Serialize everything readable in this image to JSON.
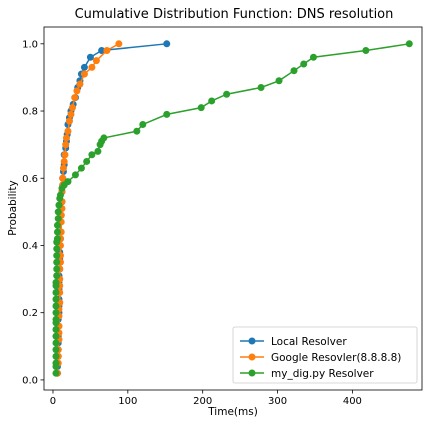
{
  "chart_data": {
    "type": "line",
    "title": "Cumulative Distribution Function: DNS resolution",
    "xlabel": "Time(ms)",
    "ylabel": "Probability",
    "xlim": [
      -12,
      493
    ],
    "ylim": [
      -0.03,
      1.05
    ],
    "xticks": [
      0,
      100,
      200,
      300,
      400
    ],
    "yticks": [
      0.0,
      0.2,
      0.4,
      0.6,
      0.8,
      1.0
    ],
    "grid": false,
    "legend_position": "lower-right",
    "series": [
      {
        "name": "Local Resolver",
        "color": "#1f77b4",
        "x": [
          6,
          6,
          7,
          7,
          7,
          7,
          7,
          7,
          8,
          8,
          8,
          8,
          8,
          8,
          9,
          9,
          9,
          9,
          10,
          10,
          10,
          11,
          11,
          12,
          12,
          13,
          13,
          14,
          15,
          15,
          17,
          18,
          19,
          20,
          22,
          24,
          27,
          30,
          33,
          36,
          38,
          42,
          50,
          65,
          152
        ],
        "y": [
          0.02,
          0.04,
          0.07,
          0.09,
          0.11,
          0.13,
          0.16,
          0.18,
          0.2,
          0.22,
          0.24,
          0.27,
          0.29,
          0.31,
          0.33,
          0.36,
          0.38,
          0.4,
          0.42,
          0.44,
          0.47,
          0.49,
          0.51,
          0.53,
          0.56,
          0.58,
          0.6,
          0.62,
          0.64,
          0.67,
          0.69,
          0.71,
          0.73,
          0.76,
          0.78,
          0.8,
          0.82,
          0.84,
          0.87,
          0.89,
          0.91,
          0.93,
          0.96,
          0.98,
          1.0
        ]
      },
      {
        "name": "Google Resovler(8.8.8.8)",
        "color": "#ff7f0e",
        "x": [
          6,
          7,
          7,
          7,
          8,
          8,
          8,
          8,
          8,
          9,
          9,
          9,
          9,
          9,
          10,
          10,
          10,
          10,
          11,
          11,
          11,
          12,
          12,
          12,
          13,
          13,
          14,
          15,
          16,
          17,
          18,
          20,
          22,
          24,
          26,
          29,
          32,
          36,
          42,
          52,
          58,
          72,
          88
        ],
        "y": [
          0.02,
          0.05,
          0.07,
          0.09,
          0.12,
          0.14,
          0.16,
          0.19,
          0.21,
          0.23,
          0.26,
          0.28,
          0.3,
          0.33,
          0.35,
          0.37,
          0.4,
          0.42,
          0.44,
          0.47,
          0.49,
          0.51,
          0.53,
          0.56,
          0.58,
          0.6,
          0.63,
          0.65,
          0.67,
          0.7,
          0.72,
          0.74,
          0.77,
          0.79,
          0.81,
          0.84,
          0.86,
          0.88,
          0.91,
          0.93,
          0.95,
          0.98,
          1.0
        ]
      },
      {
        "name": "my_dig.py Resolver",
        "color": "#2ca02c",
        "x": [
          4,
          4,
          4,
          4,
          4,
          4,
          4,
          4,
          4,
          4,
          4,
          4,
          4,
          4,
          4,
          4,
          5,
          5,
          5,
          5,
          5,
          5,
          6,
          6,
          6,
          7,
          7,
          8,
          9,
          10,
          12,
          15,
          20,
          30,
          38,
          45,
          52,
          60,
          63,
          65,
          68,
          112,
          120,
          152,
          198,
          212,
          232,
          278,
          302,
          322,
          335,
          348,
          418,
          476
        ],
        "y": [
          0.02,
          0.04,
          0.05,
          0.07,
          0.09,
          0.11,
          0.13,
          0.15,
          0.17,
          0.18,
          0.2,
          0.22,
          0.24,
          0.26,
          0.28,
          0.29,
          0.31,
          0.33,
          0.35,
          0.37,
          0.39,
          0.41,
          0.42,
          0.44,
          0.46,
          0.48,
          0.5,
          0.52,
          0.54,
          0.55,
          0.57,
          0.58,
          0.59,
          0.61,
          0.63,
          0.65,
          0.67,
          0.68,
          0.7,
          0.71,
          0.72,
          0.74,
          0.76,
          0.79,
          0.81,
          0.83,
          0.85,
          0.87,
          0.89,
          0.92,
          0.94,
          0.96,
          0.98,
          1.0
        ]
      }
    ]
  }
}
